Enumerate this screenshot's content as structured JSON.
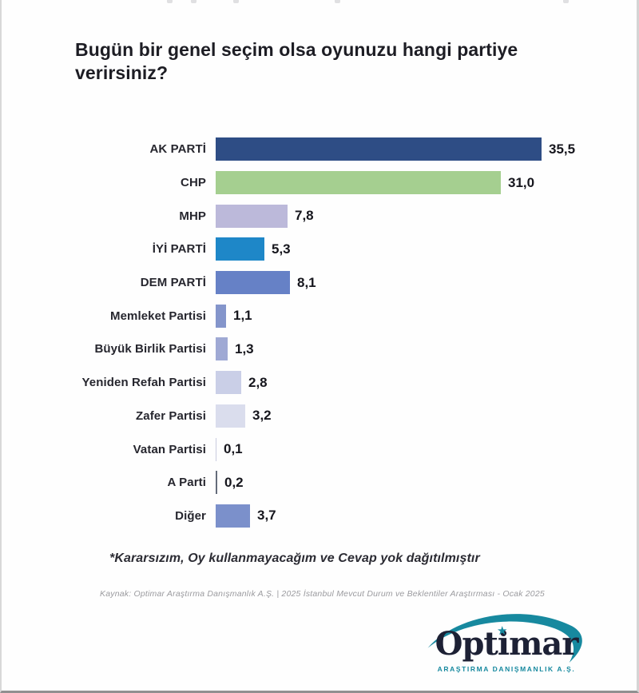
{
  "title": "Bugün bir genel seçim olsa oyunuzu hangi partiye verirsiniz?",
  "footnote": "*Kararsızım, Oy kullanmayacağım ve Cevap yok dağıtılmıştır",
  "source": "Kaynak: Optimar Araştırma Danışmanlık A.Ş. | 2025 İstanbul Mevcut Durum ve Beklentiler Araştırması - Ocak 2025",
  "logo": {
    "brand": "Optimar",
    "subtitle": "ARAŞTIRMA DANIŞMANLIK A.Ş.",
    "star_icon": "★",
    "accent_color": "#17899f",
    "text_color": "#1d2135"
  },
  "chart_data": {
    "type": "bar",
    "orientation": "horizontal",
    "title": "Bugün bir genel seçim olsa oyunuzu hangi partiye verirsiniz?",
    "xlabel": "",
    "ylabel": "",
    "xlim": [
      0,
      38
    ],
    "grid": false,
    "legend": false,
    "categories": [
      "AK PARTİ",
      "CHP",
      "MHP",
      "İYİ PARTİ",
      "DEM PARTİ",
      "Memleket Partisi",
      "Büyük Birlik Partisi",
      "Yeniden Refah Partisi",
      "Zafer Partisi",
      "Vatan Partisi",
      "A Parti",
      "Diğer"
    ],
    "values": [
      35.5,
      31.0,
      7.8,
      5.3,
      8.1,
      1.1,
      1.3,
      2.8,
      3.2,
      0.1,
      0.2,
      3.7
    ],
    "value_labels": [
      "35,5",
      "31,0",
      "7,8",
      "5,3",
      "8,1",
      "1,1",
      "1,3",
      "2,8",
      "3,2",
      "0,1",
      "0,2",
      "3,7"
    ],
    "bar_colors": [
      "#2e4d85",
      "#a5cf90",
      "#bcb9da",
      "#1e87c8",
      "#6681c6",
      "#8495cb",
      "#9fa9d4",
      "#cacfe7",
      "#dadded",
      "#caccdf",
      "#646c7a",
      "#7b90cb"
    ]
  }
}
